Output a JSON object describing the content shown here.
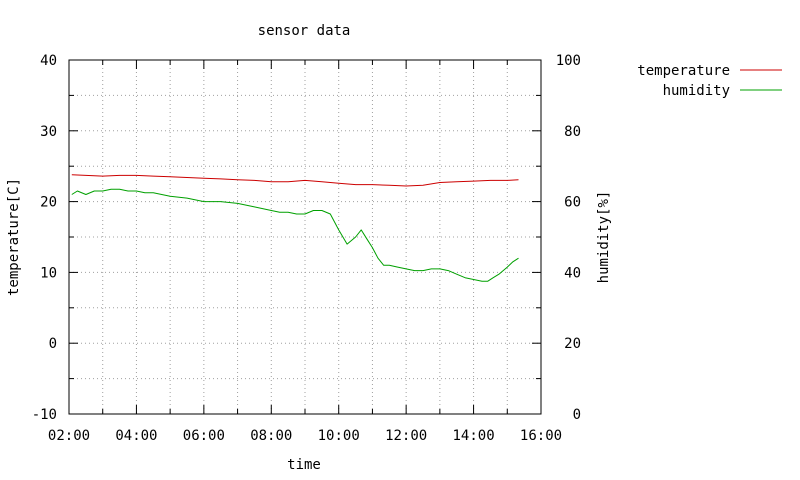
{
  "chart_data": {
    "type": "line",
    "title": "sensor data",
    "xlabel": "time",
    "ylabel_left": "temperature[C]",
    "ylabel_right": "humidity[%]",
    "x_ticks": [
      "02:00",
      "04:00",
      "06:00",
      "08:00",
      "10:00",
      "12:00",
      "14:00",
      "16:00"
    ],
    "y_left_ticks": [
      "-10",
      "0",
      "10",
      "20",
      "30",
      "40"
    ],
    "y_right_ticks": [
      "0",
      "20",
      "40",
      "60",
      "80",
      "100"
    ],
    "x_range": [
      "02:00",
      "16:00"
    ],
    "ylim_left": [
      -10,
      40
    ],
    "ylim_right": [
      0,
      100
    ],
    "grid": true,
    "legend_position": "top-right outside",
    "series": [
      {
        "name": "temperature",
        "axis": "left",
        "color": "#cc0000",
        "x": [
          "02:05",
          "02:30",
          "03:00",
          "03:30",
          "04:00",
          "04:30",
          "05:00",
          "05:30",
          "06:00",
          "06:30",
          "07:00",
          "07:30",
          "08:00",
          "08:30",
          "09:00",
          "09:30",
          "10:00",
          "10:30",
          "11:00",
          "11:30",
          "12:00",
          "12:30",
          "13:00",
          "13:30",
          "14:00",
          "14:30",
          "15:00",
          "15:20"
        ],
        "values": [
          23.8,
          23.7,
          23.6,
          23.7,
          23.7,
          23.6,
          23.5,
          23.4,
          23.3,
          23.2,
          23.1,
          23.0,
          22.8,
          22.8,
          23.0,
          22.8,
          22.6,
          22.4,
          22.4,
          22.3,
          22.2,
          22.3,
          22.7,
          22.8,
          22.9,
          23.0,
          23.0,
          23.1
        ]
      },
      {
        "name": "humidity",
        "axis": "right",
        "color": "#00a000",
        "x": [
          "02:05",
          "02:15",
          "02:30",
          "02:45",
          "03:00",
          "03:15",
          "03:30",
          "03:45",
          "04:00",
          "04:15",
          "04:30",
          "05:00",
          "05:30",
          "06:00",
          "06:30",
          "07:00",
          "07:30",
          "08:00",
          "08:15",
          "08:30",
          "08:45",
          "09:00",
          "09:15",
          "09:30",
          "09:45",
          "10:00",
          "10:15",
          "10:30",
          "10:40",
          "10:50",
          "11:00",
          "11:10",
          "11:20",
          "11:30",
          "11:45",
          "12:00",
          "12:15",
          "12:30",
          "12:45",
          "13:00",
          "13:15",
          "13:30",
          "13:45",
          "14:00",
          "14:15",
          "14:25",
          "14:35",
          "14:45",
          "15:00",
          "15:10",
          "15:20"
        ],
        "values": [
          62,
          63,
          62,
          63,
          63,
          63.5,
          63.5,
          63,
          63,
          62.5,
          62.5,
          61.5,
          61,
          60,
          60,
          59.5,
          58.5,
          57.5,
          57,
          57,
          56.5,
          56.5,
          57.5,
          57.5,
          56.5,
          52,
          48,
          50,
          52,
          49.5,
          47,
          44,
          42,
          42,
          41.5,
          41,
          40.5,
          40.5,
          41,
          41,
          40.5,
          39.5,
          38.5,
          38,
          37.5,
          37.5,
          38.5,
          39.5,
          41.5,
          43,
          44
        ]
      }
    ]
  }
}
